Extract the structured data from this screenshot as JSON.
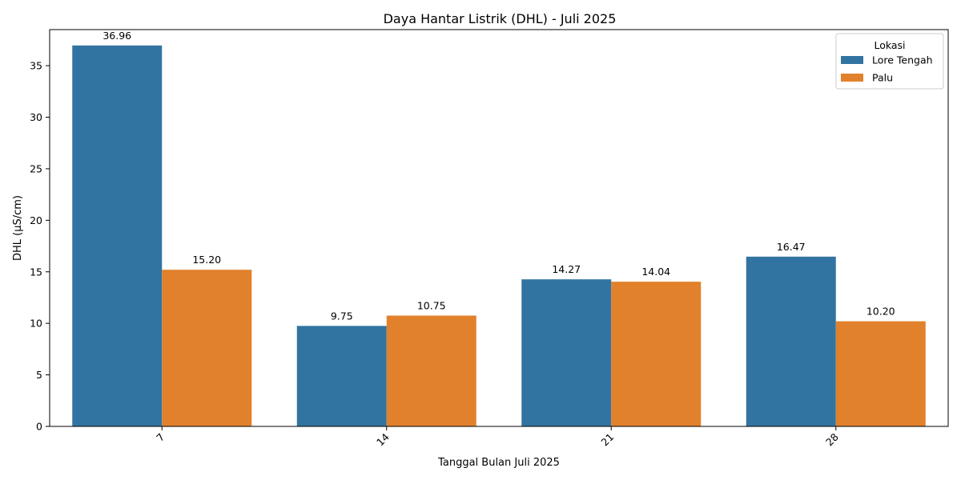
{
  "chart_data": {
    "type": "bar",
    "title": "Daya Hantar Listrik (DHL) - Juli 2025",
    "xlabel": "Tanggal Bulan Juli 2025",
    "ylabel": "DHL (µS/cm)",
    "categories": [
      "7",
      "14",
      "21",
      "28"
    ],
    "series": [
      {
        "name": "Lore Tengah",
        "values": [
          36.96,
          9.75,
          14.27,
          16.47
        ],
        "color": "#3274a1",
        "labels": [
          "36.96",
          "9.75",
          "14.27",
          "16.47"
        ]
      },
      {
        "name": "Palu",
        "values": [
          15.2,
          10.75,
          14.04,
          10.2
        ],
        "color": "#e1812c",
        "labels": [
          "15.20",
          "10.75",
          "14.04",
          "10.20"
        ]
      }
    ],
    "ylim": [
      0,
      38.5
    ],
    "yticks": [
      0,
      5,
      10,
      15,
      20,
      25,
      30,
      35
    ],
    "ytick_labels": [
      "0",
      "5",
      "10",
      "15",
      "20",
      "25",
      "30",
      "35"
    ],
    "legend": {
      "title": "Lokasi",
      "position": "top-right"
    },
    "grid": false
  }
}
